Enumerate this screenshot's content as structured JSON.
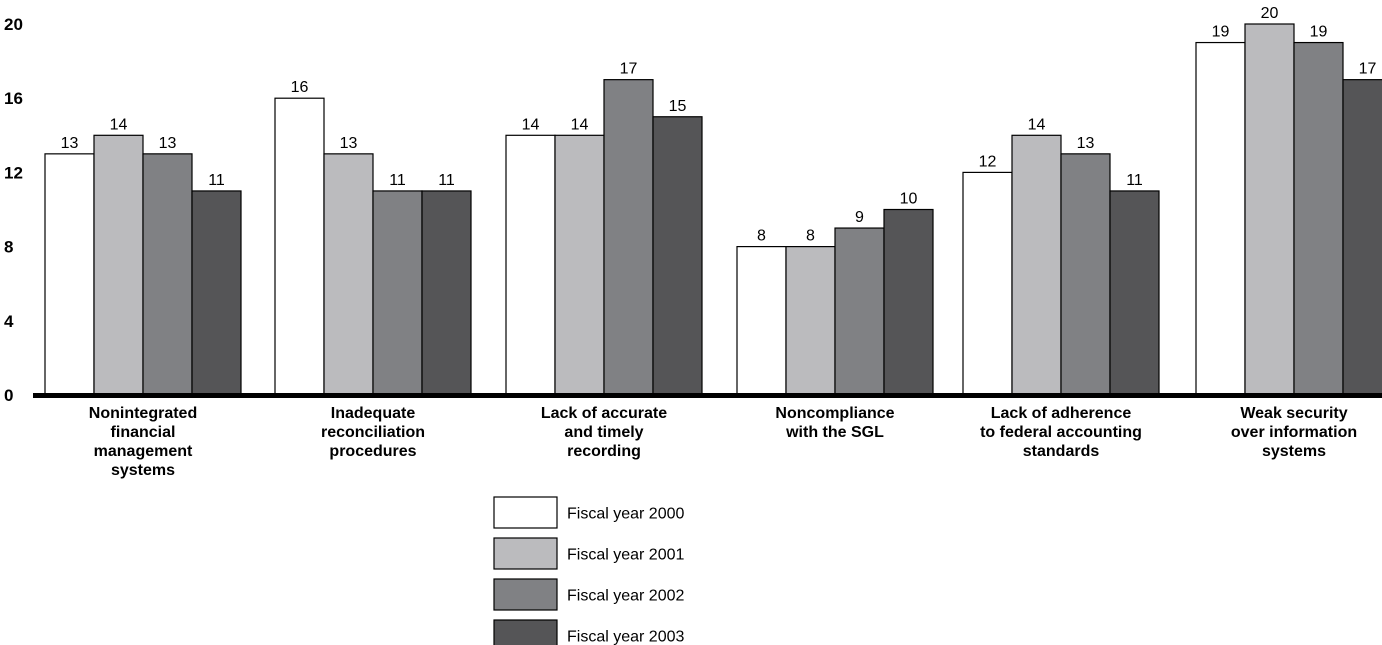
{
  "chart_data": {
    "type": "bar",
    "title": "",
    "xlabel": "",
    "ylabel": "",
    "ylim": [
      0,
      20
    ],
    "yticks": [
      "0",
      "4",
      "8",
      "12",
      "16",
      "20"
    ],
    "categories": [
      [
        "Nonintegrated",
        "financial",
        "management",
        "systems"
      ],
      [
        "Inadequate",
        "reconciliation",
        "procedures"
      ],
      [
        "Lack of accurate",
        "and timely",
        "recording"
      ],
      [
        "Noncompliance",
        "with the SGL"
      ],
      [
        "Lack of adherence",
        "to federal accounting",
        "standards"
      ],
      [
        "Weak security",
        "over information",
        "systems"
      ]
    ],
    "series": [
      {
        "name": "Fiscal year 2000",
        "color": "#ffffff",
        "values": [
          13,
          16,
          14,
          8,
          12,
          19
        ]
      },
      {
        "name": "Fiscal year 2001",
        "color": "#bbbbbe",
        "values": [
          14,
          13,
          14,
          8,
          14,
          20
        ]
      },
      {
        "name": "Fiscal year 2002",
        "color": "#808184",
        "values": [
          13,
          11,
          17,
          9,
          13,
          19
        ]
      },
      {
        "name": "Fiscal year 2003",
        "color": "#555557",
        "values": [
          11,
          11,
          15,
          10,
          11,
          17
        ]
      }
    ],
    "grid": false,
    "legend_position": "bottom-center"
  }
}
